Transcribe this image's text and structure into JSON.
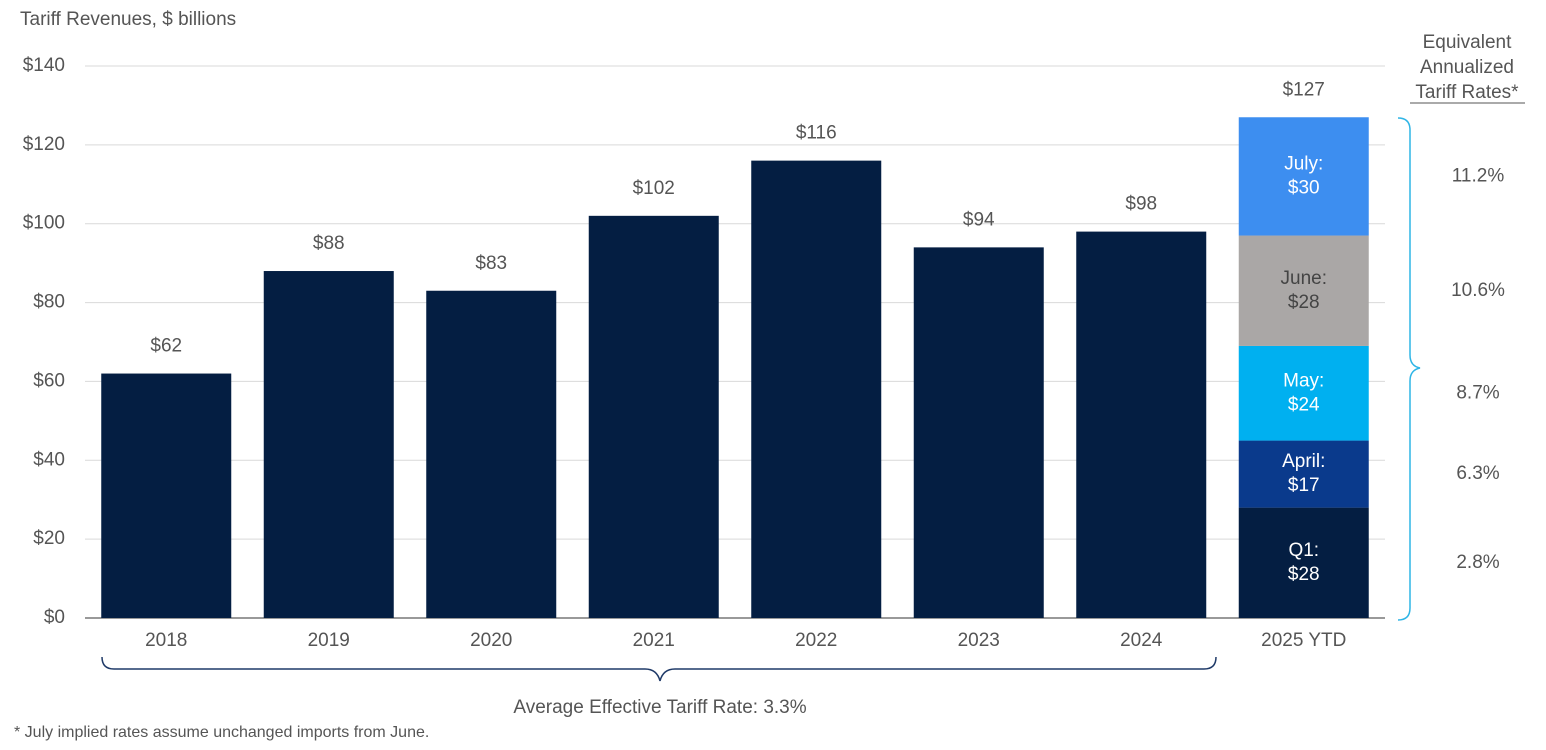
{
  "chart_data": {
    "type": "bar",
    "y_axis_label": "Tariff Revenues, $ billions",
    "categories": [
      "2018",
      "2019",
      "2020",
      "2021",
      "2022",
      "2023",
      "2024",
      "2025 YTD"
    ],
    "values": [
      62,
      88,
      83,
      102,
      116,
      94,
      98,
      127
    ],
    "value_labels": [
      "$62",
      "$88",
      "$83",
      "$102",
      "$116",
      "$94",
      "$98",
      "$127"
    ],
    "color": "#041e42",
    "segments": [
      {
        "name": "Q1:",
        "value": 28,
        "value_label": "$28",
        "color": "#041e42",
        "text_color": "#ffffff",
        "rate_label": "2.8%"
      },
      {
        "name": "April:",
        "value": 17,
        "value_label": "$17",
        "color": "#0a3a8c",
        "text_color": "#ffffff",
        "rate_label": "6.3%"
      },
      {
        "name": "May:",
        "value": 24,
        "value_label": "$24",
        "color": "#00b0f0",
        "text_color": "#ffffff",
        "rate_label": "8.7%"
      },
      {
        "name": "June:",
        "value": 28,
        "value_label": "$28",
        "color": "#aaa7a6",
        "text_color": "#444444",
        "rate_label": "10.6%"
      },
      {
        "name": "July:",
        "value": 30,
        "value_label": "$30",
        "color": "#3d8ef0",
        "text_color": "#ffffff",
        "rate_label": "11.2%"
      }
    ],
    "rate_header": [
      "Equivalent",
      "Annualized",
      "Tariff Rates*"
    ],
    "bottom_annotation": "Average Effective Tariff Rate: 3.3%",
    "footnote": "* July implied rates assume unchanged imports from June.",
    "ylim": [
      0,
      140
    ],
    "yticks": [
      {
        "value": 0,
        "label": "$0"
      },
      {
        "value": 20,
        "label": "$20"
      },
      {
        "value": 40,
        "label": "$40"
      },
      {
        "value": 60,
        "label": "$60"
      },
      {
        "value": 80,
        "label": "$80"
      },
      {
        "value": 100,
        "label": "$100"
      },
      {
        "value": 120,
        "label": "$120"
      },
      {
        "value": 140,
        "label": "$140"
      }
    ],
    "grid": true
  }
}
